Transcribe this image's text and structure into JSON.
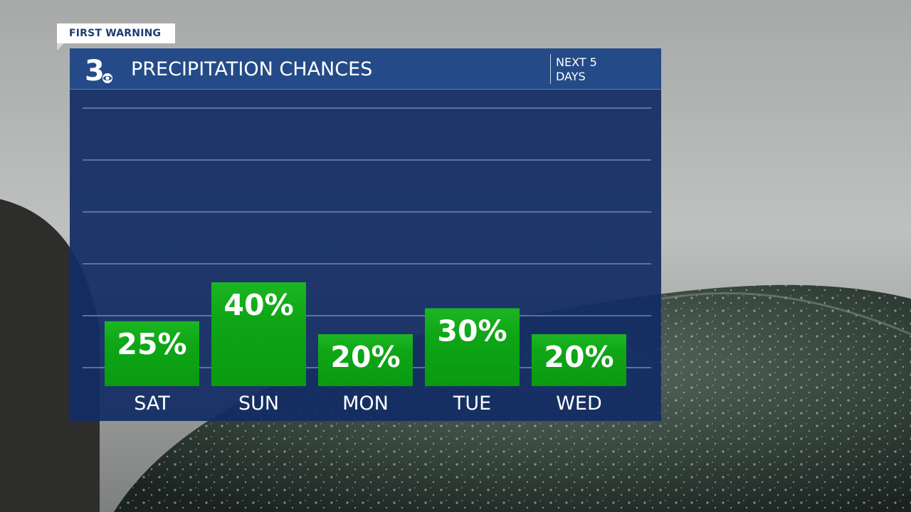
{
  "badge": {
    "label": "FIRST WARNING"
  },
  "header": {
    "logo_text": "3",
    "title": "PRECIPITATION CHANCES",
    "range_line1": "NEXT 5",
    "range_line2": "DAYS"
  },
  "colors": {
    "panel": "#122c64",
    "header": "#244b88",
    "bar": "#0c9e12",
    "bar_top": "#18b11f",
    "gridline": "#7188b5",
    "badge_text": "#1f3d73"
  },
  "chart_data": {
    "type": "bar",
    "title": "PRECIPITATION CHANCES",
    "subtitle": "NEXT 5 DAYS",
    "categories": [
      "SAT",
      "SUN",
      "MON",
      "TUE",
      "WED"
    ],
    "values": [
      25,
      40,
      20,
      30,
      20
    ],
    "value_labels": [
      "25%",
      "40%",
      "20%",
      "30%",
      "20%"
    ],
    "unit": "%",
    "ylim": [
      0,
      100
    ],
    "grid": true,
    "legend": "none"
  }
}
